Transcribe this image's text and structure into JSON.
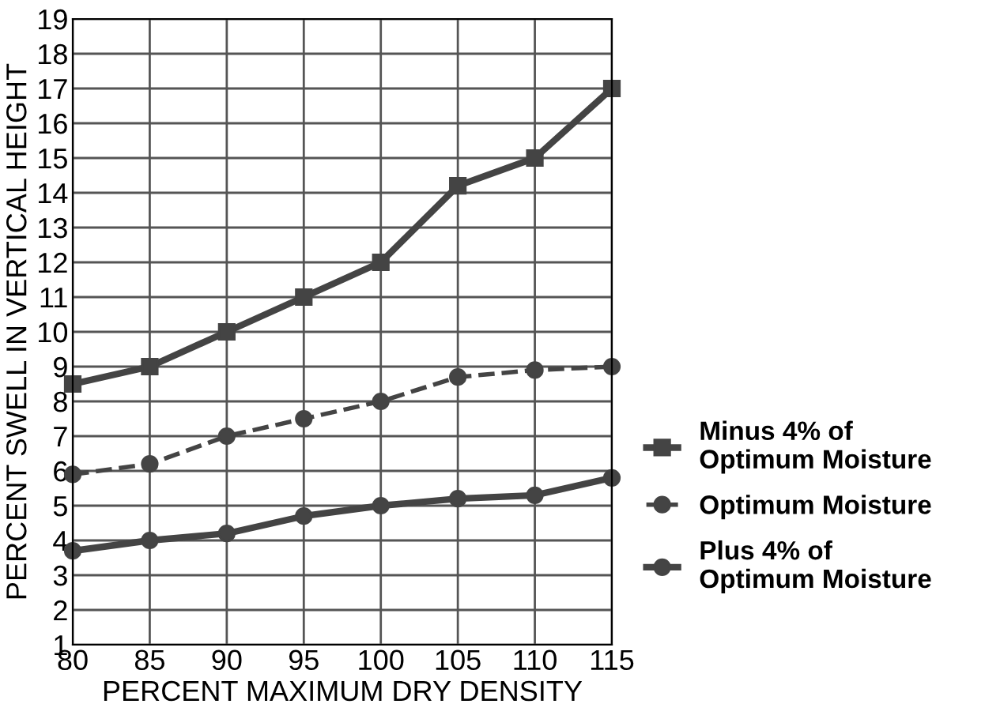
{
  "chart_data": {
    "type": "line",
    "xlabel": "PERCENT MAXIMUM DRY DENSITY",
    "ylabel": "PERCENT SWELL IN VERTICAL HEIGHT",
    "x": [
      80,
      85,
      90,
      95,
      100,
      105,
      110,
      115
    ],
    "xlim": [
      80,
      115
    ],
    "xticks": [
      80,
      85,
      90,
      95,
      100,
      105,
      110,
      115
    ],
    "ylim": [
      1,
      19
    ],
    "yticks": [
      1,
      2,
      3,
      4,
      5,
      6,
      7,
      8,
      9,
      10,
      11,
      12,
      13,
      14,
      15,
      16,
      17,
      18,
      19
    ],
    "grid": true,
    "legend": "right",
    "series": [
      {
        "name": "Minus 4% of\nOptimum Moisture",
        "color": "#444444",
        "marker": "square",
        "line_style": "solid",
        "values": [
          8.5,
          9,
          10,
          11,
          12,
          14.2,
          15,
          17
        ]
      },
      {
        "name": "Optimum Moisture",
        "color": "#444444",
        "marker": "circle",
        "line_style": "dashed",
        "values": [
          5.9,
          6.2,
          7,
          7.5,
          8,
          8.7,
          8.9,
          9
        ]
      },
      {
        "name": "Plus 4% of\nOptimum Moisture",
        "color": "#444444",
        "marker": "circle",
        "line_style": "solid",
        "values": [
          3.7,
          4,
          4.2,
          4.7,
          5,
          5.2,
          5.3,
          5.8
        ]
      }
    ]
  }
}
